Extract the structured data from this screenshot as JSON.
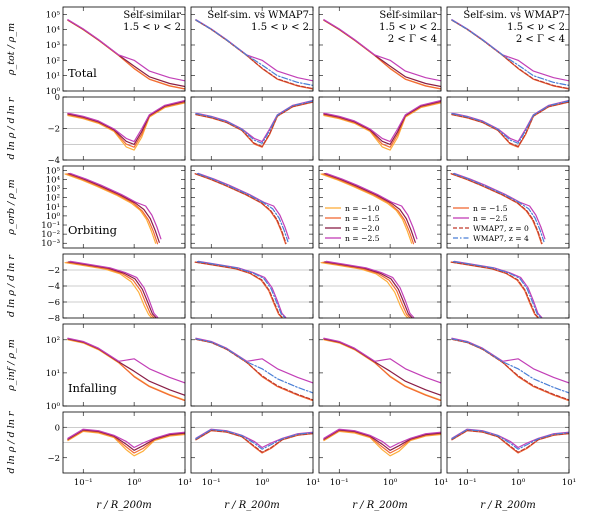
{
  "chart_data": {
    "type": "line",
    "description_grid": "6 rows x 4 columns of log-scale profile panels sharing x-axis",
    "xlabel": "r / R_200m",
    "x_ticks": [
      "10^-1",
      "10^0",
      "10^1"
    ],
    "xlim": [
      0.04,
      10
    ],
    "colors": {
      "n1.0": "#fdae3b",
      "n1.5": "#f26a36",
      "n2.0": "#8a1f47",
      "n2.5": "#c23fb7",
      "wmap_z0": "#c0392b",
      "wmap_z4": "#4a7fd6"
    },
    "columns": [
      {
        "annotation_lines": [
          "Self-similar",
          "1.5 < ν < 2"
        ]
      },
      {
        "annotation_lines": [
          "Self-sim. vs WMAP7",
          "1.5 < ν < 2"
        ]
      },
      {
        "annotation_lines": [
          "Self-similar",
          "1.5 < ν < 2",
          "2 < Γ < 4"
        ]
      },
      {
        "annotation_lines": [
          "Self-sim. vs WMAP7",
          "1.5 < ν < 2",
          "2 < Γ < 4"
        ]
      }
    ],
    "rows": [
      {
        "name": "Total",
        "ylabel": "ρ_tot / ρ_m",
        "scale": "log",
        "ylim": [
          1,
          300000
        ],
        "yticks": [
          "10^0",
          "10^1",
          "10^2",
          "10^3",
          "10^4",
          "10^5"
        ]
      },
      {
        "name": "",
        "ylabel": "d ln ρ / d ln r",
        "scale": "linear",
        "ylim": [
          -4,
          0
        ],
        "yticks": [
          "-4",
          "-2",
          "0"
        ],
        "reflines": [
          -1,
          -2,
          -3
        ]
      },
      {
        "name": "Orbiting",
        "ylabel": "ρ_orb / ρ_m",
        "scale": "log",
        "ylim": [
          0.0003,
          300000
        ],
        "yticks": [
          "10^-3",
          "10^-2",
          "10^-1",
          "10^0",
          "10^1",
          "10^2",
          "10^3",
          "10^4",
          "10^5"
        ]
      },
      {
        "name": "",
        "ylabel": "d ln ρ / d ln r",
        "scale": "linear",
        "ylim": [
          -8,
          0
        ],
        "yticks": [
          "-8",
          "-6",
          "-4",
          "-2"
        ],
        "reflines": [
          -2,
          -4,
          -6
        ]
      },
      {
        "name": "Infalling",
        "ylabel": "ρ_inf / ρ_m",
        "scale": "log",
        "ylim": [
          1,
          300
        ],
        "yticks": [
          "10^0",
          "10^1",
          "10^2"
        ]
      },
      {
        "name": "",
        "ylabel": "d ln ρ / d ln r",
        "scale": "linear",
        "ylim": [
          -3,
          1
        ],
        "yticks": [
          "-2",
          "0"
        ],
        "reflines": [
          -1,
          0
        ]
      }
    ],
    "legend_left": [
      {
        "label": "n = −1.0",
        "color": "#fdae3b",
        "dash": "solid"
      },
      {
        "label": "n = −1.5",
        "color": "#f26a36",
        "dash": "solid"
      },
      {
        "label": "n = −2.0",
        "color": "#8a1f47",
        "dash": "solid"
      },
      {
        "label": "n = −2.5",
        "color": "#c23fb7",
        "dash": "solid"
      }
    ],
    "legend_right": [
      {
        "label": "n = −1.5",
        "color": "#f26a36",
        "dash": "solid"
      },
      {
        "label": "n = −2.5",
        "color": "#c23fb7",
        "dash": "solid"
      },
      {
        "label": "WMAP7, z = 0",
        "color": "#c0392b",
        "dash": "dashed"
      },
      {
        "label": "WMAP7, z = 4",
        "color": "#4a7fd6",
        "dash": "dashdot"
      }
    ],
    "legend_placement": "orbiting row, columns 3 and 4, lower-left",
    "series_templates": {
      "total": {
        "x": [
          0.05,
          0.1,
          0.2,
          0.5,
          1.0,
          2.0,
          5.0,
          10.0
        ],
        "y": [
          40000,
          10000,
          2000,
          200,
          30,
          6,
          2.2,
          1.4
        ]
      },
      "total_slope": {
        "x": [
          0.05,
          0.1,
          0.2,
          0.4,
          0.7,
          1.0,
          1.4,
          2.0,
          4.0,
          10.0
        ],
        "y": [
          -1.1,
          -1.3,
          -1.6,
          -2.1,
          -2.9,
          -3.1,
          -2.3,
          -1.2,
          -0.6,
          -0.3
        ]
      },
      "orbiting": {
        "x": [
          0.05,
          0.1,
          0.2,
          0.5,
          1.0,
          1.5,
          2.0,
          2.5,
          3.0
        ],
        "y": [
          40000,
          10000,
          2000,
          200,
          25,
          4,
          0.4,
          0.02,
          0.001
        ]
      },
      "orbiting_slope": {
        "x": [
          0.05,
          0.1,
          0.3,
          0.6,
          1.0,
          1.4,
          1.8,
          2.2,
          2.6
        ],
        "y": [
          -1.0,
          -1.3,
          -1.8,
          -2.4,
          -3.2,
          -4.5,
          -6.2,
          -7.5,
          -8.0
        ]
      },
      "infalling": {
        "x": [
          0.05,
          0.1,
          0.2,
          0.5,
          1.0,
          2.0,
          5.0,
          10.0
        ],
        "y": [
          100,
          80,
          50,
          20,
          8,
          4,
          2.2,
          1.5
        ]
      },
      "infalling_slope": {
        "x": [
          0.05,
          0.1,
          0.2,
          0.4,
          0.7,
          1.0,
          1.5,
          2.5,
          5.0,
          10.0
        ],
        "y": [
          -0.8,
          -0.2,
          -0.3,
          -0.6,
          -1.2,
          -1.6,
          -1.3,
          -0.8,
          -0.5,
          -0.4
        ]
      }
    }
  }
}
